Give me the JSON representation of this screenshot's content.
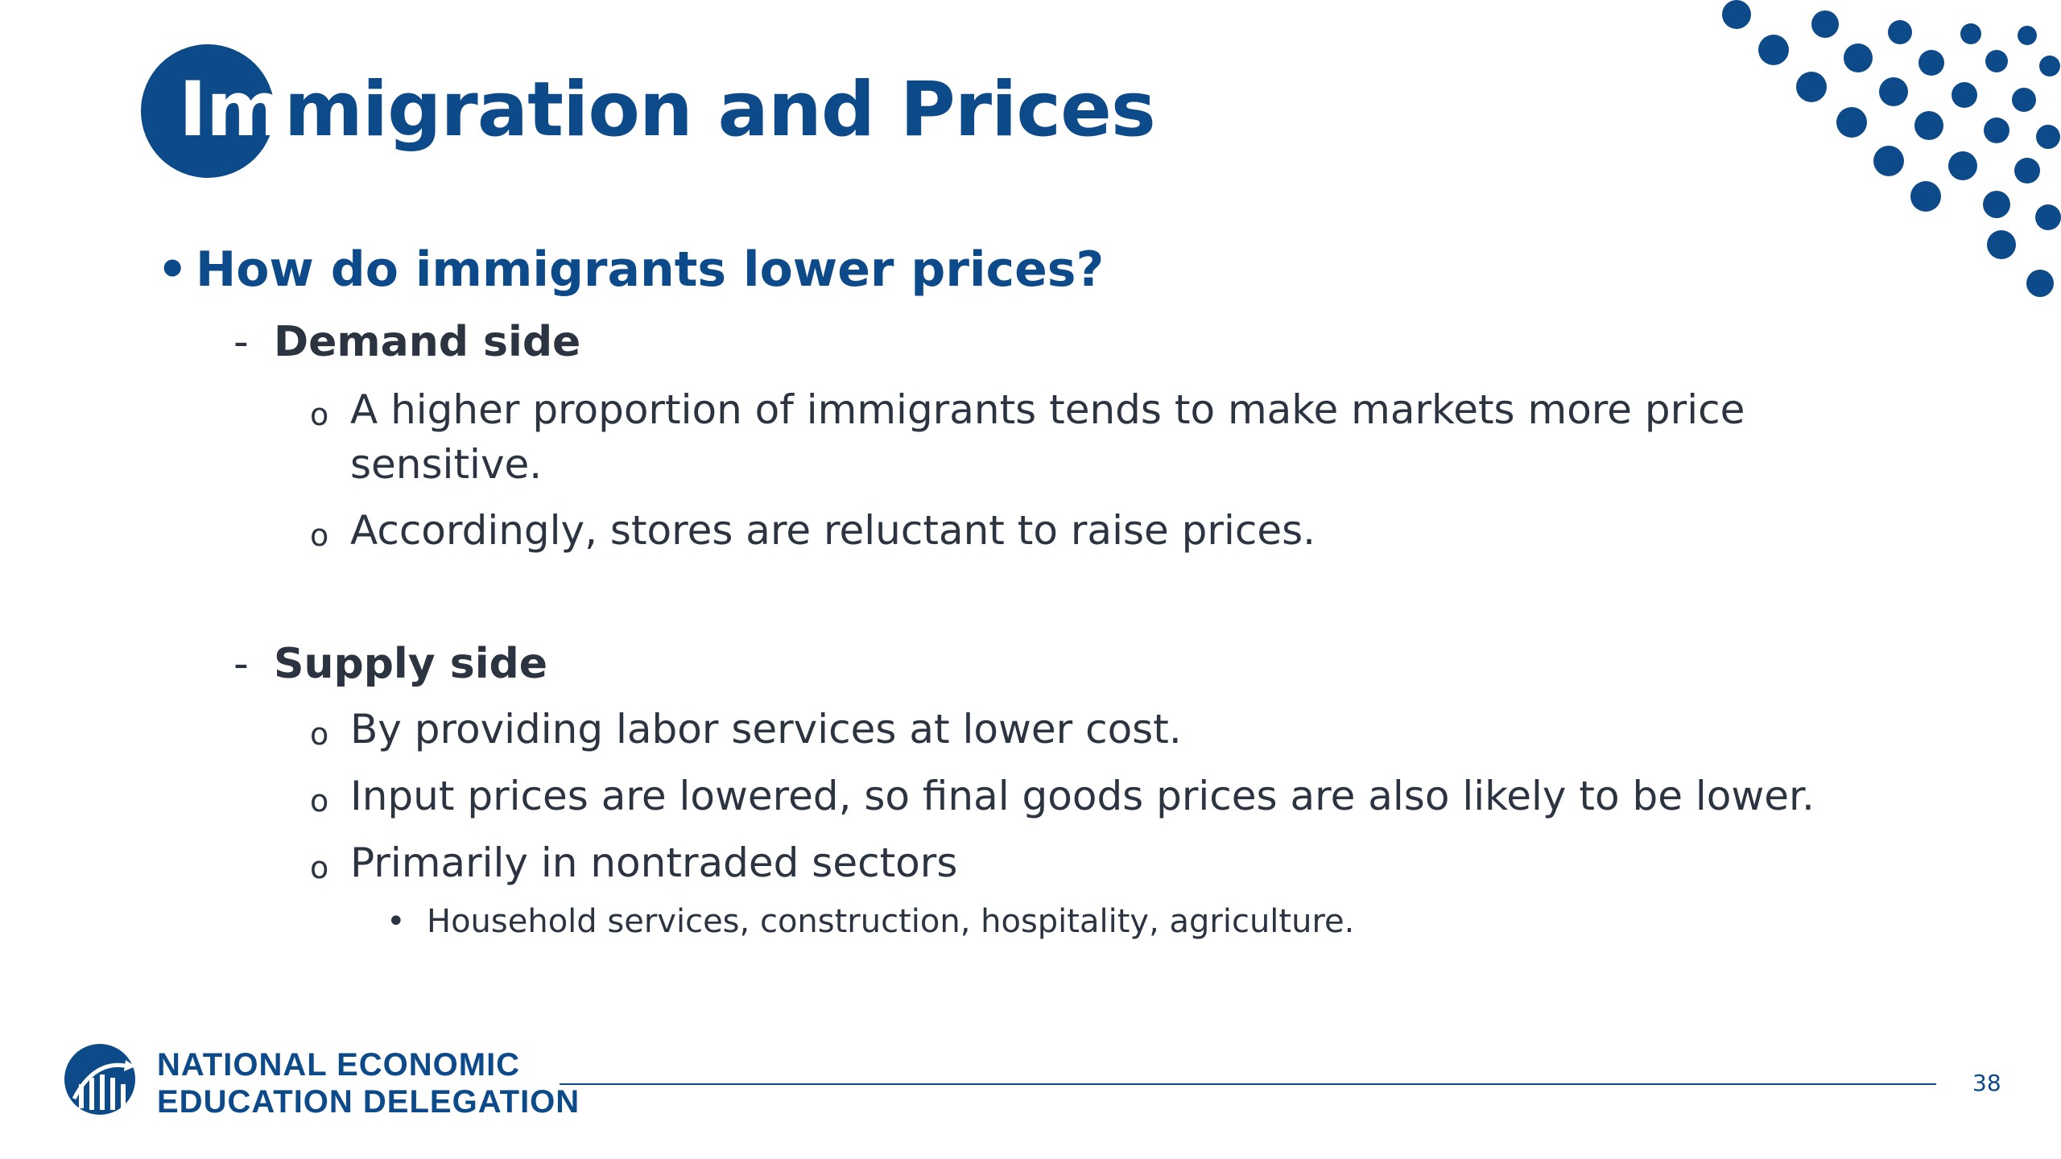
{
  "title": {
    "highlight": "Im",
    "rest": "migration and Prices"
  },
  "question": {
    "bullet": "•",
    "text": "How do immigrants lower prices?"
  },
  "sections": {
    "demand": {
      "dash": "-",
      "label": "Demand side",
      "items": [
        "A higher proportion of immigrants tends to make markets more price sensitive.",
        "Accordingly, stores are reluctant to raise prices."
      ]
    },
    "supply": {
      "dash": "-",
      "label": "Supply side",
      "items": [
        "By providing labor services at lower cost.",
        "Input prices are lowered, so final goods prices are also likely to be lower.",
        "Primarily in nontraded sectors"
      ],
      "subitems": [
        "Household services, construction, hospitality, agriculture."
      ]
    }
  },
  "markers": {
    "item": "o",
    "subitem": "•"
  },
  "footer": {
    "org_line1": "NATIONAL ECONOMIC",
    "org_line2": "EDUCATION DELEGATION",
    "page_number": "38"
  },
  "colors": {
    "brand_blue": "#0d4a8a",
    "body_text": "#2b3440",
    "background": "#ffffff"
  },
  "icons": {
    "logo": "nee-logo-icon",
    "decoration": "dot-pattern-icon"
  }
}
